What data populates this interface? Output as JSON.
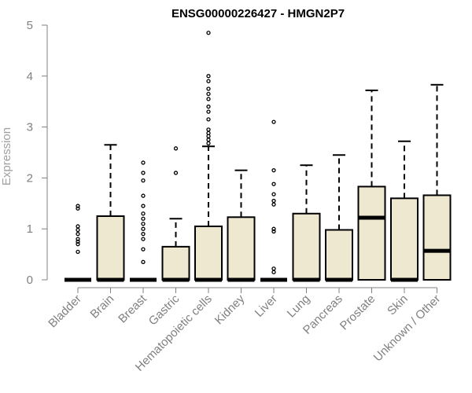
{
  "chart_data": {
    "type": "boxplot",
    "title": "ENSG00000226427 - HMGN2P7",
    "ylabel": "Expression",
    "xlabel": "",
    "ylim": [
      0,
      5
    ],
    "yticks": [
      "0",
      "1",
      "2",
      "3",
      "4",
      "5"
    ],
    "grid": false,
    "box_color": "#efe8d0",
    "categories": [
      "Bladder",
      "Brain",
      "Breast",
      "Gastric",
      "Hematopoietic cells",
      "Kidney",
      "Liver",
      "Lung",
      "Pancreas",
      "Prostate",
      "Skin",
      "Unknown / Other"
    ],
    "boxes": [
      {
        "min": 0,
        "q1": 0,
        "median": 0,
        "q3": 0,
        "max": 0,
        "outliers": [
          0.55,
          0.7,
          0.75,
          0.8,
          0.9,
          0.98,
          1.05,
          1.4,
          1.45
        ]
      },
      {
        "min": 0,
        "q1": 0,
        "median": 0,
        "q3": 1.25,
        "max": 2.65,
        "outliers": []
      },
      {
        "min": 0,
        "q1": 0,
        "median": 0,
        "q3": 0,
        "max": 0,
        "outliers": [
          0.35,
          0.6,
          0.8,
          0.9,
          1.0,
          1.1,
          1.2,
          1.3,
          1.45,
          1.65,
          1.95,
          2.1,
          2.3
        ]
      },
      {
        "min": 0,
        "q1": 0,
        "median": 0,
        "q3": 0.65,
        "max": 1.2,
        "outliers": [
          2.1,
          2.58
        ]
      },
      {
        "min": 0,
        "q1": 0,
        "median": 0,
        "q3": 1.05,
        "max": 2.62,
        "outliers": [
          2.68,
          2.75,
          2.82,
          2.88,
          2.95,
          3.15,
          3.3,
          3.4,
          3.55,
          3.65,
          3.75,
          3.9,
          4.0,
          4.85
        ]
      },
      {
        "min": 0,
        "q1": 0,
        "median": 0,
        "q3": 1.23,
        "max": 2.15,
        "outliers": []
      },
      {
        "min": 0,
        "q1": 0,
        "median": 0,
        "q3": 0,
        "max": 0,
        "outliers": [
          0.15,
          0.22,
          0.95,
          1.0,
          1.48,
          1.55,
          1.68,
          1.88,
          2.15,
          3.1
        ]
      },
      {
        "min": 0,
        "q1": 0,
        "median": 0,
        "q3": 1.3,
        "max": 2.25,
        "outliers": []
      },
      {
        "min": 0,
        "q1": 0,
        "median": 0,
        "q3": 0.98,
        "max": 2.45,
        "outliers": []
      },
      {
        "min": 0,
        "q1": 0,
        "median": 1.22,
        "q3": 1.83,
        "max": 3.72,
        "outliers": []
      },
      {
        "min": 0,
        "q1": 0,
        "median": 0,
        "q3": 1.6,
        "max": 2.72,
        "outliers": []
      },
      {
        "min": 0,
        "q1": 0,
        "median": 0.57,
        "q3": 1.66,
        "max": 3.83,
        "outliers": []
      }
    ]
  }
}
